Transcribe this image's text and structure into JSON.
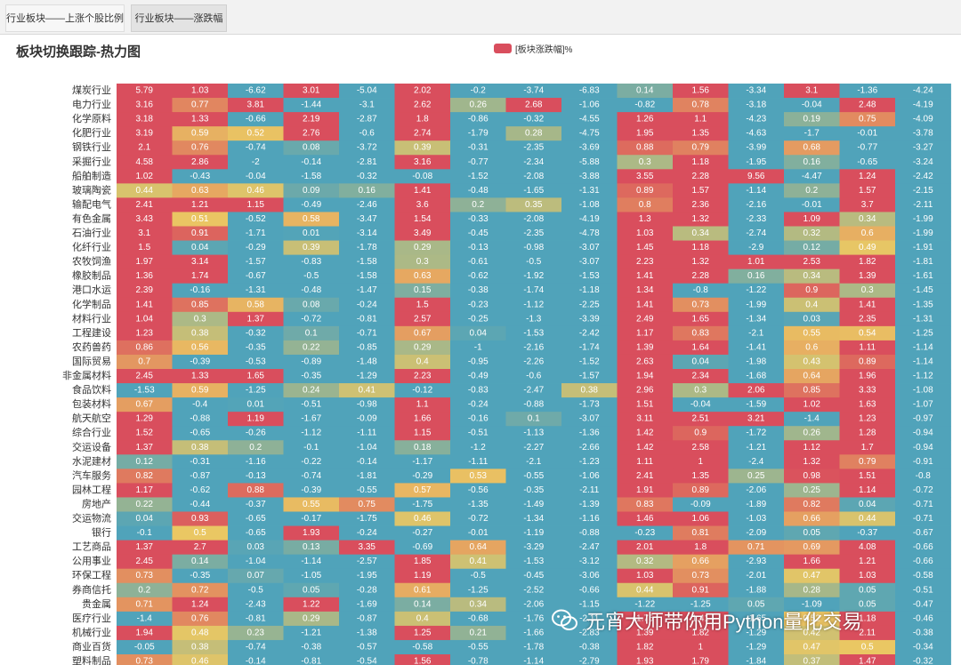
{
  "tabs": [
    {
      "label": "行业板块——上涨个股比例"
    },
    {
      "label": "行业板块——涨跌幅"
    }
  ],
  "watermark": "元宵大师带你用Python量化交易",
  "chart_data": {
    "type": "heatmap",
    "title": "板块切换跟踪-热力图",
    "legend": {
      "label": "[板块涨跌幅]%",
      "color": "#d94e5d",
      "placement": "top-center"
    },
    "colors": {
      "low": "#50a3ba",
      "mid": "#eac763",
      "high": "#d94e5d"
    },
    "rows": [
      "煤炭行业",
      "电力行业",
      "化学原料",
      "化肥行业",
      "钢铁行业",
      "采掘行业",
      "船舶制造",
      "玻璃陶瓷",
      "输配电气",
      "有色金属",
      "石油行业",
      "化纤行业",
      "农牧饲渔",
      "橡胶制品",
      "港口水运",
      "化学制品",
      "材料行业",
      "工程建设",
      "农药兽药",
      "国际贸易",
      "非金属材料",
      "食品饮料",
      "包装材料",
      "航天航空",
      "综合行业",
      "交运设备",
      "水泥建材",
      "汽车服务",
      "园林工程",
      "房地产",
      "交运物流",
      "银行",
      "工艺商品",
      "公用事业",
      "环保工程",
      "券商信托",
      "贵金属",
      "医疗行业",
      "机械行业",
      "商业百货"
    ],
    "values": [
      [
        5.79,
        1.03,
        -6.62,
        3.01,
        -5.04,
        2.02,
        -0.2,
        -3.74,
        -6.83,
        0.14,
        1.56,
        -3.34,
        3.1,
        -1.36,
        -4.24
      ],
      [
        3.16,
        0.77,
        3.81,
        -1.44,
        -3.1,
        2.62,
        0.26,
        2.68,
        -1.06,
        -0.82,
        0.78,
        -3.18,
        -0.04,
        2.48,
        -4.19
      ],
      [
        3.18,
        1.33,
        -0.66,
        2.19,
        -2.87,
        1.8,
        -0.86,
        -0.32,
        -4.55,
        1.26,
        1.1,
        -4.23,
        0.19,
        0.75,
        -4.09
      ],
      [
        3.19,
        0.59,
        0.52,
        2.76,
        -0.6,
        2.74,
        -1.79,
        0.28,
        -4.75,
        1.95,
        1.35,
        -4.63,
        -1.7,
        -0.01,
        -3.78
      ],
      [
        2.1,
        0.76,
        -0.74,
        0.08,
        -3.72,
        0.39,
        -0.31,
        -2.35,
        -3.69,
        0.88,
        0.79,
        -3.99,
        0.68,
        -0.77,
        -3.27
      ],
      [
        4.58,
        2.86,
        -2,
        -0.14,
        -2.81,
        3.16,
        -0.77,
        -2.34,
        -5.88,
        0.3,
        1.18,
        -1.95,
        0.16,
        -0.65,
        -3.24
      ],
      [
        1.02,
        -0.43,
        -0.04,
        -1.58,
        -0.32,
        -0.08,
        -1.52,
        -2.08,
        -3.88,
        3.55,
        2.28,
        9.56,
        -4.47,
        1.24,
        -2.42
      ],
      [
        0.44,
        0.63,
        0.46,
        0.09,
        0.16,
        1.41,
        -0.48,
        -1.65,
        -1.31,
        0.89,
        1.57,
        -1.14,
        0.2,
        1.57,
        -2.15
      ],
      [
        2.41,
        1.21,
        1.15,
        -0.49,
        -2.46,
        3.6,
        0.2,
        0.35,
        -1.08,
        0.8,
        2.36,
        -2.16,
        -0.01,
        3.7,
        -2.11
      ],
      [
        3.43,
        0.51,
        -0.52,
        0.58,
        -3.47,
        1.54,
        -0.33,
        -2.08,
        -4.19,
        1.3,
        1.32,
        -2.33,
        1.09,
        0.34,
        -1.99
      ],
      [
        3.1,
        0.91,
        -1.71,
        0.01,
        -3.14,
        3.49,
        -0.45,
        -2.35,
        -4.78,
        1.03,
        0.34,
        -2.74,
        0.32,
        0.6,
        -1.99
      ],
      [
        1.5,
        0.04,
        -0.29,
        0.39,
        -1.78,
        0.29,
        -0.13,
        -0.98,
        -3.07,
        1.45,
        1.18,
        -2.9,
        0.12,
        0.49,
        -1.91
      ],
      [
        1.97,
        3.14,
        -1.57,
        -0.83,
        -1.58,
        0.3,
        -0.61,
        -0.5,
        -3.07,
        2.23,
        1.32,
        1.01,
        2.53,
        1.82,
        -1.81
      ],
      [
        1.36,
        1.74,
        -0.67,
        -0.5,
        -1.58,
        0.63,
        -0.62,
        -1.92,
        -1.53,
        1.41,
        2.28,
        0.16,
        0.34,
        1.39,
        -1.61
      ],
      [
        2.39,
        -0.16,
        -1.31,
        -0.48,
        -1.47,
        0.15,
        -0.38,
        -1.74,
        -1.18,
        1.34,
        -0.8,
        -1.22,
        0.9,
        0.3,
        -1.45
      ],
      [
        1.41,
        0.85,
        0.58,
        0.08,
        -0.24,
        1.5,
        -0.23,
        -1.12,
        -2.25,
        1.41,
        0.73,
        -1.99,
        0.4,
        1.41,
        -1.35
      ],
      [
        1.04,
        0.3,
        1.37,
        -0.72,
        -0.81,
        2.57,
        -0.25,
        -1.3,
        -3.39,
        2.49,
        1.65,
        -1.34,
        0.03,
        2.35,
        -1.31
      ],
      [
        1.23,
        0.38,
        -0.32,
        0.1,
        -0.71,
        0.67,
        0.04,
        -1.53,
        -2.42,
        1.17,
        0.83,
        -2.1,
        0.55,
        0.54,
        -1.25
      ],
      [
        0.86,
        0.56,
        -0.35,
        0.22,
        -0.85,
        0.29,
        -1,
        -2.16,
        -1.74,
        1.39,
        1.64,
        -1.41,
        0.6,
        1.11,
        -1.14
      ],
      [
        0.7,
        -0.39,
        -0.53,
        -0.89,
        -1.48,
        0.4,
        -0.95,
        -2.26,
        -1.52,
        2.63,
        0.04,
        -1.98,
        0.43,
        0.89,
        -1.14
      ],
      [
        2.45,
        1.33,
        1.65,
        -0.35,
        -1.29,
        2.23,
        -0.49,
        -0.6,
        -1.57,
        1.94,
        2.34,
        -1.68,
        0.64,
        1.96,
        -1.12
      ],
      [
        -1.53,
        0.59,
        -1.25,
        0.24,
        0.41,
        -0.12,
        -0.83,
        -2.47,
        0.38,
        2.96,
        0.3,
        2.06,
        0.85,
        3.33,
        -1.08
      ],
      [
        0.67,
        -0.4,
        0.01,
        -0.51,
        -0.98,
        1.1,
        -0.24,
        -0.88,
        -1.73,
        1.51,
        -0.04,
        -1.59,
        1.02,
        1.63,
        -1.07
      ],
      [
        1.29,
        -0.88,
        1.19,
        -1.67,
        -0.09,
        1.66,
        -0.16,
        0.1,
        -3.07,
        3.11,
        2.51,
        3.21,
        -1.4,
        1.23,
        -0.97
      ],
      [
        1.52,
        -0.65,
        -0.26,
        -1.12,
        -1.11,
        1.15,
        -0.51,
        -1.13,
        -1.36,
        1.42,
        0.9,
        -1.72,
        0.26,
        1.28,
        -0.94
      ],
      [
        1.37,
        0.38,
        0.2,
        -0.1,
        -1.04,
        0.18,
        -1.2,
        -2.27,
        -2.66,
        1.42,
        2.58,
        -1.21,
        1.12,
        1.7,
        -0.94
      ],
      [
        0.12,
        -0.31,
        -1.16,
        -0.22,
        -0.14,
        -1.17,
        -1.11,
        -2.1,
        -1.23,
        1.11,
        1,
        -2.4,
        1.32,
        0.79,
        -0.91
      ],
      [
        0.82,
        -0.87,
        -0.13,
        -0.74,
        -1.81,
        -0.29,
        0.53,
        -0.55,
        -1.06,
        2.41,
        1.35,
        0.25,
        0.98,
        1.51,
        -0.8
      ],
      [
        1.17,
        -0.62,
        0.88,
        -0.39,
        -0.55,
        0.57,
        -0.56,
        -0.35,
        -2.11,
        1.91,
        0.89,
        -2.06,
        0.25,
        1.14,
        -0.72
      ],
      [
        0.22,
        -0.44,
        -0.37,
        0.55,
        0.75,
        -1.75,
        -1.35,
        -1.49,
        -1.39,
        0.83,
        -0.09,
        -1.89,
        0.82,
        0.04,
        -0.71
      ],
      [
        0.04,
        0.93,
        -0.65,
        -0.17,
        -1.75,
        0.46,
        -0.72,
        -1.34,
        -1.16,
        1.46,
        1.06,
        -1.03,
        0.66,
        0.44,
        -0.71
      ],
      [
        -0.1,
        0.5,
        -0.65,
        1.93,
        -0.24,
        -0.27,
        -0.01,
        -1.19,
        -0.88,
        -0.23,
        0.81,
        -2.09,
        0.05,
        -0.37,
        -0.67
      ],
      [
        1.37,
        2.7,
        0.03,
        0.13,
        3.35,
        -0.69,
        0.64,
        -3.29,
        -2.47,
        2.01,
        1.8,
        0.71,
        0.69,
        4.08,
        -0.66
      ],
      [
        2.45,
        0.14,
        -1.04,
        -1.14,
        -2.57,
        1.85,
        0.41,
        -1.53,
        -3.12,
        0.32,
        0.66,
        -2.93,
        1.66,
        1.21,
        -0.66
      ],
      [
        0.73,
        -0.35,
        0.07,
        -1.05,
        -1.95,
        1.19,
        -0.5,
        -0.45,
        -3.06,
        1.03,
        0.73,
        -2.01,
        0.47,
        1.03,
        -0.58
      ],
      [
        0.2,
        0.72,
        -0.5,
        0.05,
        -0.28,
        0.61,
        -1.25,
        -2.52,
        -0.66,
        0.44,
        0.91,
        -1.88,
        0.28,
        0.05,
        -0.51
      ],
      [
        0.71,
        1.24,
        -2.43,
        1.22,
        -1.69,
        0.14,
        0.34,
        -2.06,
        -1.15,
        -1.22,
        -1.25,
        0.05,
        -1.09,
        0.05,
        -0.47
      ],
      [
        -1.4,
        0.76,
        -0.81,
        0.29,
        -0.87,
        0.4,
        -0.68,
        -1.76,
        -2.11,
        1.75,
        1.41,
        -1.65,
        0.52,
        1.18,
        -0.46
      ],
      [
        1.94,
        0.48,
        0.23,
        -1.21,
        -1.38,
        1.25,
        0.21,
        -1.66,
        -2.83,
        1.39,
        1.82,
        -1.29,
        0.42,
        2.11,
        -0.38
      ],
      [
        -0.05,
        0.38,
        -0.74,
        -0.38,
        -0.57,
        -0.58,
        -0.55,
        -1.78,
        -0.38,
        1.82,
        1,
        -1.29,
        0.47,
        0.5,
        -0.34
      ]
    ],
    "partial_row": {
      "label": "塑料制品",
      "values": [
        0.73,
        0.46,
        -0.14,
        -0.81,
        -0.54,
        1.56,
        -0.78,
        -1.14,
        -2.79,
        1.93,
        1.79,
        -1.84,
        0.37,
        1.47,
        -0.32
      ]
    }
  }
}
